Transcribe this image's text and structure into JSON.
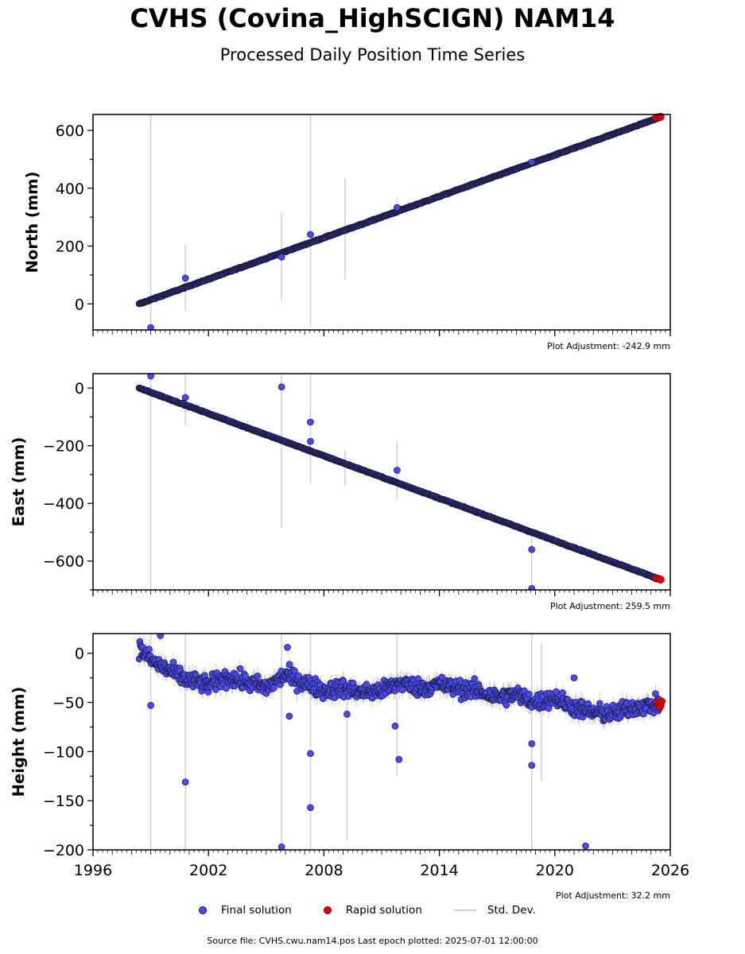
{
  "header": {
    "title": "CVHS (Covina_HighSCIGN) NAM14",
    "subtitle": "Processed Daily Position Time Series"
  },
  "footer": {
    "source_text": "Source file: CVHS.cwu.nam14.pos  Last epoch plotted: 2025-07-01 12:00:00"
  },
  "colors": {
    "final": "#4a4af0",
    "final_edge": "#1a1a3a",
    "rapid": "#e00000",
    "stddev": "#d0d0d0"
  },
  "chart_data": [
    {
      "type": "scatter",
      "ylabel": "North (mm)",
      "adjustment": "Plot Adjustment: -242.9 mm",
      "xlim": [
        1996,
        2026
      ],
      "ylim": [
        -90,
        655
      ],
      "yticks": [
        0,
        200,
        400,
        600
      ],
      "ytick_labels": [
        "0",
        "200",
        "400",
        "600"
      ],
      "trend": {
        "start": [
          1998.4,
          0
        ],
        "end": [
          2025.5,
          646
        ]
      },
      "wobble": 3,
      "outliers": [
        {
          "x": 1999.0,
          "y": -82
        },
        {
          "x": 2000.8,
          "y": 89
        },
        {
          "x": 2005.8,
          "y": 162
        },
        {
          "x": 2007.3,
          "y": 240
        },
        {
          "x": 2011.8,
          "y": 333
        },
        {
          "x": 2018.8,
          "y": 490
        }
      ],
      "spikes": [
        {
          "x": 1999.0,
          "y0": -90,
          "y1": 655
        },
        {
          "x": 2000.8,
          "y0": -25,
          "y1": 205
        },
        {
          "x": 2005.8,
          "y0": 12,
          "y1": 315
        },
        {
          "x": 2007.3,
          "y0": -80,
          "y1": 655
        },
        {
          "x": 2009.1,
          "y0": 85,
          "y1": 435
        },
        {
          "x": 2011.8,
          "y0": 300,
          "y1": 365
        }
      ],
      "rapid": [
        {
          "x": 2025.25,
          "y": 644
        },
        {
          "x": 2025.4,
          "y": 646
        },
        {
          "x": 2025.5,
          "y": 647
        }
      ]
    },
    {
      "type": "scatter",
      "ylabel": "East (mm)",
      "adjustment": "Plot Adjustment: 259.5 mm",
      "xlim": [
        1996,
        2026
      ],
      "ylim": [
        -700,
        50
      ],
      "yticks": [
        0,
        -200,
        -400,
        -600
      ],
      "ytick_labels": [
        "0",
        "−200",
        "−400",
        "−600"
      ],
      "trend": {
        "start": [
          1998.4,
          0
        ],
        "end": [
          2025.5,
          -664
        ]
      },
      "wobble": 3,
      "outliers": [
        {
          "x": 1999.0,
          "y": 42
        },
        {
          "x": 2000.8,
          "y": -33
        },
        {
          "x": 2005.8,
          "y": 4
        },
        {
          "x": 2007.3,
          "y": -118
        },
        {
          "x": 2007.3,
          "y": -185
        },
        {
          "x": 2011.8,
          "y": -285
        },
        {
          "x": 2018.8,
          "y": -560
        },
        {
          "x": 2018.8,
          "y": -695
        }
      ],
      "spikes": [
        {
          "x": 1999.0,
          "y0": -700,
          "y1": 50
        },
        {
          "x": 2000.8,
          "y0": -130,
          "y1": 50
        },
        {
          "x": 2005.8,
          "y0": -485,
          "y1": 50
        },
        {
          "x": 2007.3,
          "y0": -330,
          "y1": 50
        },
        {
          "x": 2009.1,
          "y0": -340,
          "y1": -215
        },
        {
          "x": 2011.8,
          "y0": -385,
          "y1": -185
        },
        {
          "x": 2018.8,
          "y0": -700,
          "y1": -490
        }
      ],
      "rapid": [
        {
          "x": 2025.25,
          "y": -660
        },
        {
          "x": 2025.4,
          "y": -662
        },
        {
          "x": 2025.5,
          "y": -664
        }
      ]
    },
    {
      "type": "scatter",
      "ylabel": "Height (mm)",
      "adjustment": "Plot Adjustment: 32.2 mm",
      "xlabel_ticks": [
        "1996",
        "2002",
        "2008",
        "2014",
        "2020",
        "2026"
      ],
      "xticks": [
        1996,
        2002,
        2008,
        2014,
        2020,
        2026
      ],
      "xlim": [
        1996,
        2026
      ],
      "ylim": [
        -200,
        20
      ],
      "yticks": [
        0,
        -50,
        -100,
        -150,
        -200
      ],
      "ytick_labels": [
        "0",
        "−50",
        "−100",
        "−150",
        "−200"
      ],
      "baseline": [
        [
          1998.4,
          5
        ],
        [
          1999.2,
          -10
        ],
        [
          2000.0,
          -18
        ],
        [
          2001.0,
          -28
        ],
        [
          2002.0,
          -32
        ],
        [
          2003.0,
          -24
        ],
        [
          2004.0,
          -30
        ],
        [
          2005.0,
          -35
        ],
        [
          2006.0,
          -22
        ],
        [
          2007.0,
          -30
        ],
        [
          2008.0,
          -38
        ],
        [
          2009.0,
          -35
        ],
        [
          2010.0,
          -40
        ],
        [
          2011.0,
          -38
        ],
        [
          2012.0,
          -30
        ],
        [
          2013.0,
          -35
        ],
        [
          2014.0,
          -32
        ],
        [
          2015.0,
          -36
        ],
        [
          2016.0,
          -38
        ],
        [
          2017.0,
          -45
        ],
        [
          2018.0,
          -42
        ],
        [
          2019.0,
          -50
        ],
        [
          2020.0,
          -45
        ],
        [
          2021.0,
          -55
        ],
        [
          2022.0,
          -60
        ],
        [
          2023.0,
          -62
        ],
        [
          2024.0,
          -55
        ],
        [
          2025.5,
          -52
        ]
      ],
      "wobble": 15,
      "outliers": [
        {
          "x": 1999.0,
          "y": -53
        },
        {
          "x": 2000.8,
          "y": -131
        },
        {
          "x": 2005.8,
          "y": -197
        },
        {
          "x": 2006.2,
          "y": -64
        },
        {
          "x": 2006.1,
          "y": 6
        },
        {
          "x": 2007.3,
          "y": -102
        },
        {
          "x": 2007.3,
          "y": -157
        },
        {
          "x": 2009.2,
          "y": -62
        },
        {
          "x": 2011.7,
          "y": -74
        },
        {
          "x": 2011.9,
          "y": -108
        },
        {
          "x": 2018.8,
          "y": -92
        },
        {
          "x": 2018.8,
          "y": -114
        },
        {
          "x": 2021.0,
          "y": -25
        },
        {
          "x": 2021.6,
          "y": -196
        },
        {
          "x": 1999.5,
          "y": 18
        }
      ],
      "spikes": [
        {
          "x": 1999.0,
          "y0": -200,
          "y1": 20
        },
        {
          "x": 2000.8,
          "y0": -200,
          "y1": 20
        },
        {
          "x": 2005.8,
          "y0": -200,
          "y1": 20
        },
        {
          "x": 2007.3,
          "y0": -200,
          "y1": 20
        },
        {
          "x": 2009.2,
          "y0": -190,
          "y1": -40
        },
        {
          "x": 2011.8,
          "y0": -125,
          "y1": 20
        },
        {
          "x": 2018.8,
          "y0": -200,
          "y1": 20
        },
        {
          "x": 2019.3,
          "y0": -130,
          "y1": 10
        }
      ],
      "rapid": [
        {
          "x": 2025.3,
          "y": -50
        },
        {
          "x": 2025.4,
          "y": -52
        },
        {
          "x": 2025.45,
          "y": -55
        },
        {
          "x": 2025.5,
          "y": -53
        },
        {
          "x": 2025.55,
          "y": -49
        }
      ]
    }
  ],
  "legend": {
    "final": "Final solution",
    "rapid": "Rapid solution",
    "stddev": "Std. Dev."
  }
}
